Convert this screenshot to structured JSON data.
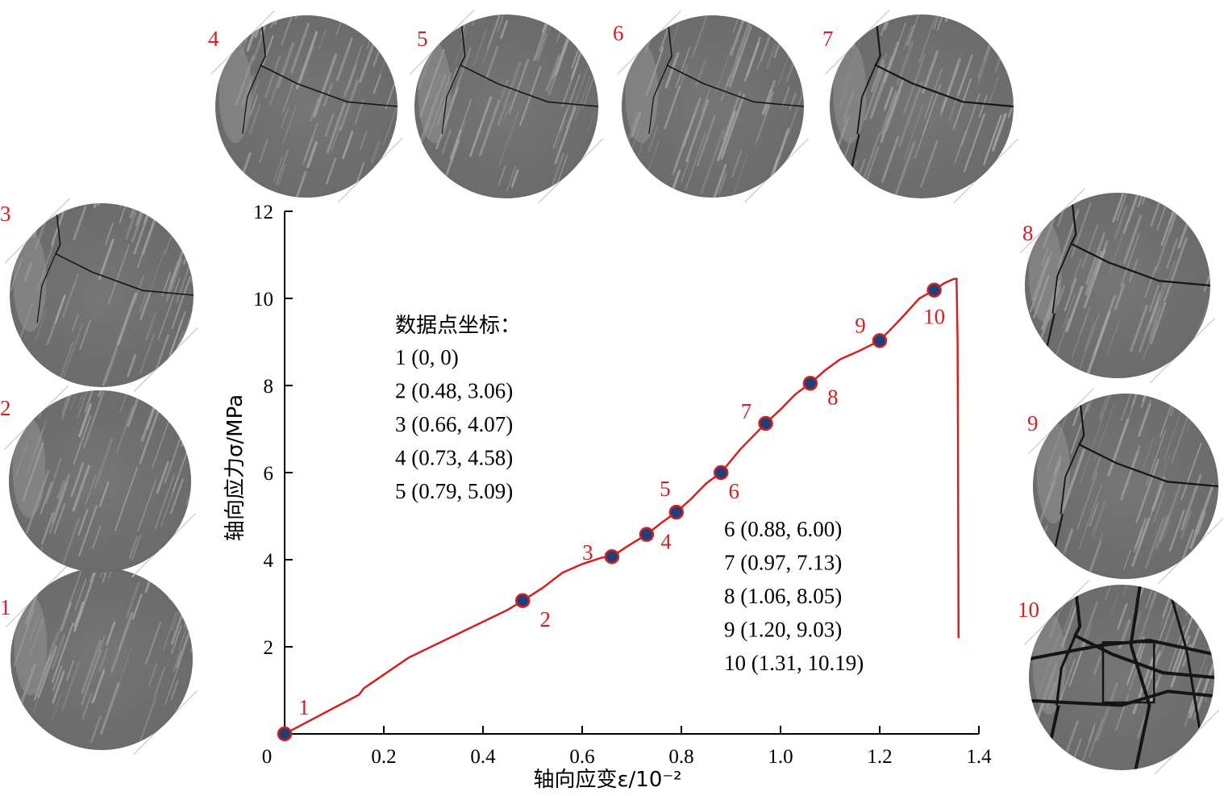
{
  "chart_data": {
    "type": "line",
    "xlabel": "轴向应变ε/10⁻²",
    "ylabel": "轴向应力σ/MPa",
    "xlim": [
      0,
      1.4
    ],
    "ylim": [
      0,
      12
    ],
    "x_ticks": [
      "0",
      "0.2",
      "0.4",
      "0.6",
      "0.8",
      "1.0",
      "1.2",
      "1.4"
    ],
    "x_tick_values": [
      0,
      0.2,
      0.4,
      0.6,
      0.8,
      1.0,
      1.2,
      1.4
    ],
    "y_ticks": [
      "2",
      "4",
      "6",
      "8",
      "10",
      "12"
    ],
    "y_tick_values": [
      2,
      4,
      6,
      8,
      10,
      12
    ],
    "curve_color": "#d42020",
    "marker_color": "#1f3f7a",
    "series": [
      {
        "curve": [
          [
            0,
            0
          ],
          [
            0.15,
            0.9
          ],
          [
            0.16,
            1.05
          ],
          [
            0.25,
            1.75
          ],
          [
            0.35,
            2.3
          ],
          [
            0.45,
            2.85
          ],
          [
            0.48,
            3.06
          ],
          [
            0.52,
            3.35
          ],
          [
            0.56,
            3.7
          ],
          [
            0.6,
            3.9
          ],
          [
            0.64,
            4.05
          ],
          [
            0.66,
            4.07
          ],
          [
            0.69,
            4.3
          ],
          [
            0.73,
            4.58
          ],
          [
            0.76,
            4.85
          ],
          [
            0.79,
            5.09
          ],
          [
            0.82,
            5.4
          ],
          [
            0.85,
            5.75
          ],
          [
            0.88,
            6.0
          ],
          [
            0.92,
            6.55
          ],
          [
            0.97,
            7.13
          ],
          [
            1.0,
            7.45
          ],
          [
            1.03,
            7.8
          ],
          [
            1.06,
            8.05
          ],
          [
            1.09,
            8.35
          ],
          [
            1.12,
            8.6
          ],
          [
            1.16,
            8.8
          ],
          [
            1.2,
            9.03
          ],
          [
            1.24,
            9.5
          ],
          [
            1.28,
            10.0
          ],
          [
            1.31,
            10.19
          ],
          [
            1.33,
            10.35
          ],
          [
            1.35,
            10.45
          ],
          [
            1.355,
            10.45
          ],
          [
            1.357,
            9.0
          ],
          [
            1.358,
            6.0
          ],
          [
            1.359,
            2.2
          ]
        ],
        "points": [
          {
            "label": "1",
            "x": 0,
            "y": 0
          },
          {
            "label": "2",
            "x": 0.48,
            "y": 3.06
          },
          {
            "label": "3",
            "x": 0.66,
            "y": 4.07
          },
          {
            "label": "4",
            "x": 0.73,
            "y": 4.58
          },
          {
            "label": "5",
            "x": 0.79,
            "y": 5.09
          },
          {
            "label": "6",
            "x": 0.88,
            "y": 6.0
          },
          {
            "label": "7",
            "x": 0.97,
            "y": 7.13
          },
          {
            "label": "8",
            "x": 1.06,
            "y": 8.05
          },
          {
            "label": "9",
            "x": 1.2,
            "y": 9.03
          },
          {
            "label": "10",
            "x": 1.31,
            "y": 10.19
          }
        ]
      }
    ],
    "annotations": {
      "coords_title": "数据点坐标：",
      "coords_left": [
        "1 (0, 0)",
        "2 (0.48, 3.06)",
        "3 (0.66, 4.07)",
        "4 (0.73, 4.58)",
        "5 (0.79, 5.09)"
      ],
      "coords_right": [
        "6 (0.88, 6.00)",
        "7 (0.97, 7.13)",
        "8 (1.06, 8.05)",
        "9 (1.20, 9.03)",
        "10 (1.31, 10.19)"
      ]
    }
  },
  "specimens": [
    {
      "label": "1",
      "crack": "none"
    },
    {
      "label": "2",
      "crack": "none"
    },
    {
      "label": "3",
      "crack": "minor"
    },
    {
      "label": "4",
      "crack": "minor"
    },
    {
      "label": "5",
      "crack": "minor"
    },
    {
      "label": "6",
      "crack": "minor"
    },
    {
      "label": "7",
      "crack": "medium"
    },
    {
      "label": "8",
      "crack": "medium"
    },
    {
      "label": "9",
      "crack": "medium"
    },
    {
      "label": "10",
      "crack": "severe"
    }
  ],
  "colors": {
    "disk_fill": "#6a6a6a",
    "disk_streak": "#a9a9a9",
    "crack": "#151515",
    "label": "#d42020"
  }
}
